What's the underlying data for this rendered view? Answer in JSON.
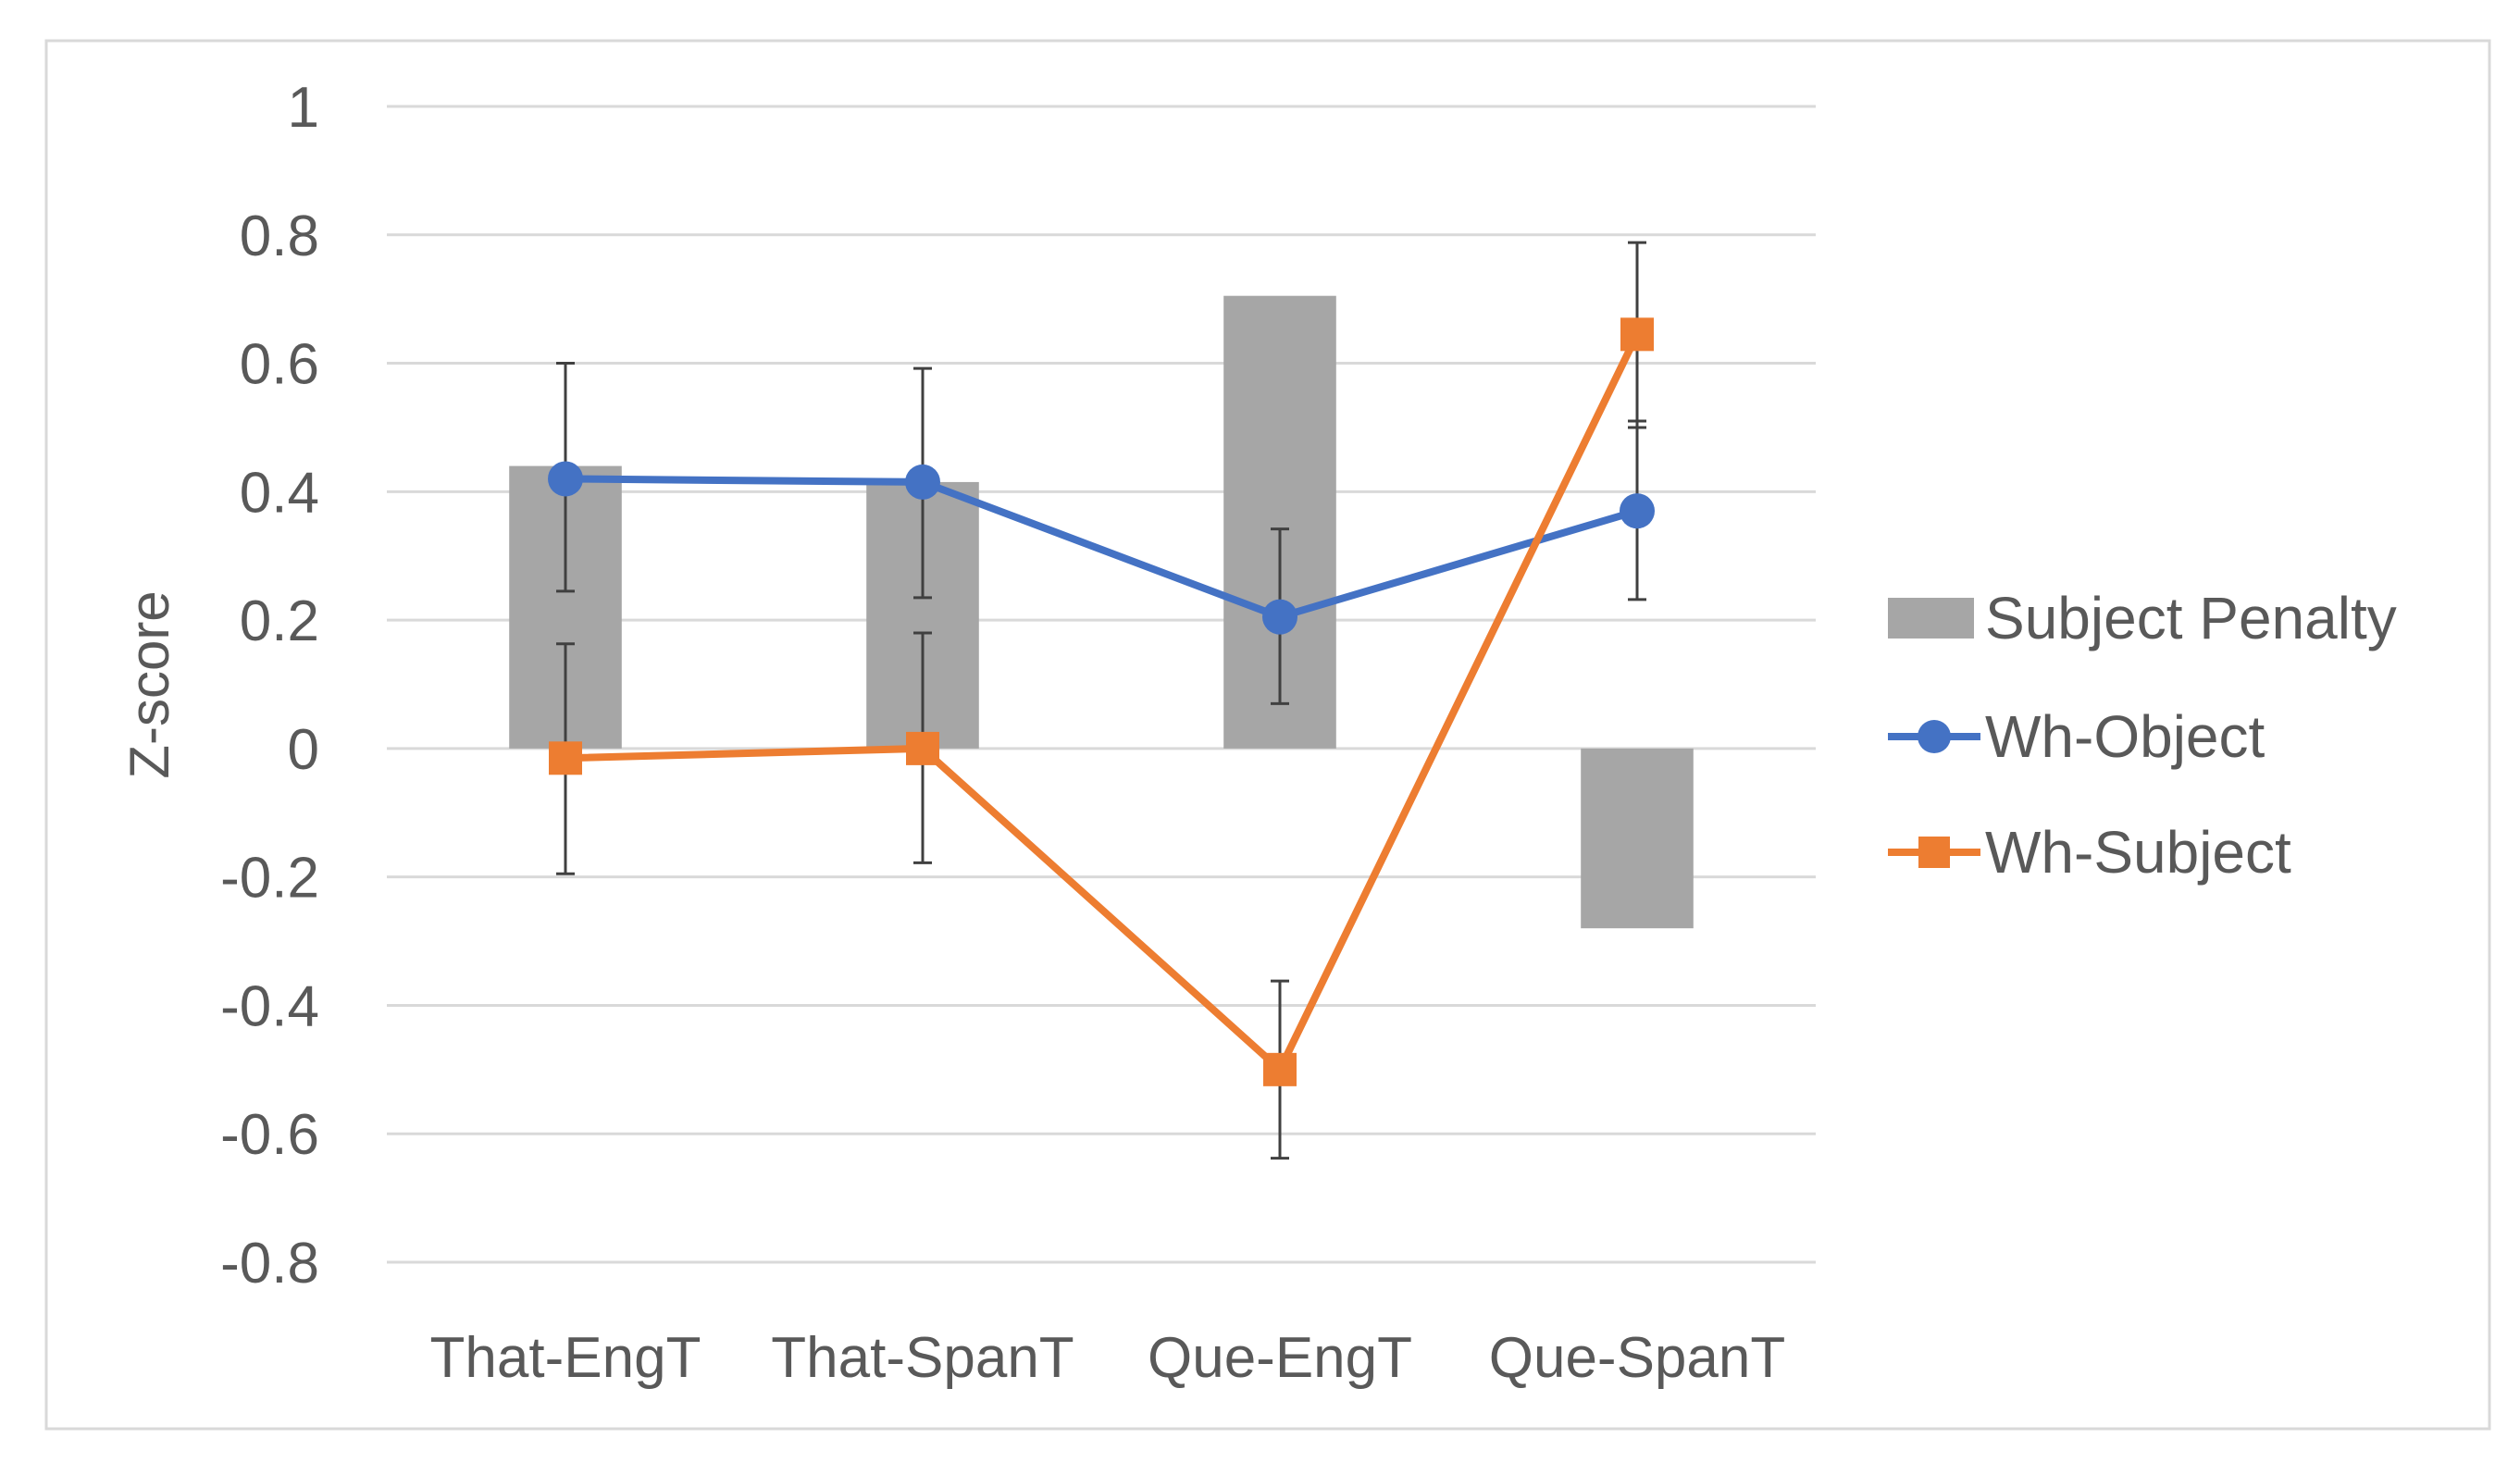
{
  "chart_data": {
    "type": "bar",
    "title": "",
    "xlabel": "",
    "ylabel": "Z-score",
    "ylim": [
      -0.8,
      1
    ],
    "yticks": [
      1,
      0.8,
      0.6,
      0.4,
      0.2,
      0,
      -0.2,
      -0.4,
      -0.6,
      -0.8
    ],
    "ytick_labels": [
      "1",
      "0.8",
      "0.6",
      "0.4",
      "0.2",
      "0",
      "-0.2",
      "-0.4",
      "-0.6",
      "-0.8"
    ],
    "grid": true,
    "legend_position": "right",
    "categories": [
      "That-EngT",
      "That-SpanT",
      "Que-EngT",
      "Que-SpanT"
    ],
    "series": [
      {
        "name": "Subject Penalty",
        "kind": "bar",
        "color": "#A6A6A6",
        "values": [
          0.44,
          0.415,
          0.705,
          -0.28
        ]
      },
      {
        "name": "Wh-Object",
        "kind": "line",
        "marker": "circle",
        "color": "#4472C4",
        "values": [
          0.42,
          0.415,
          0.205,
          0.37
        ],
        "error_low": [
          0.245,
          0.235,
          0.07,
          0.232
        ],
        "error_high": [
          0.6,
          0.592,
          0.342,
          0.51
        ]
      },
      {
        "name": "Wh-Subject",
        "kind": "line",
        "marker": "square",
        "color": "#ED7D31",
        "values": [
          -0.015,
          0.0,
          -0.5,
          0.645
        ],
        "error_low": [
          -0.195,
          -0.178,
          -0.638,
          0.5
        ],
        "error_high": [
          0.163,
          0.18,
          -0.362,
          0.788
        ]
      }
    ]
  }
}
